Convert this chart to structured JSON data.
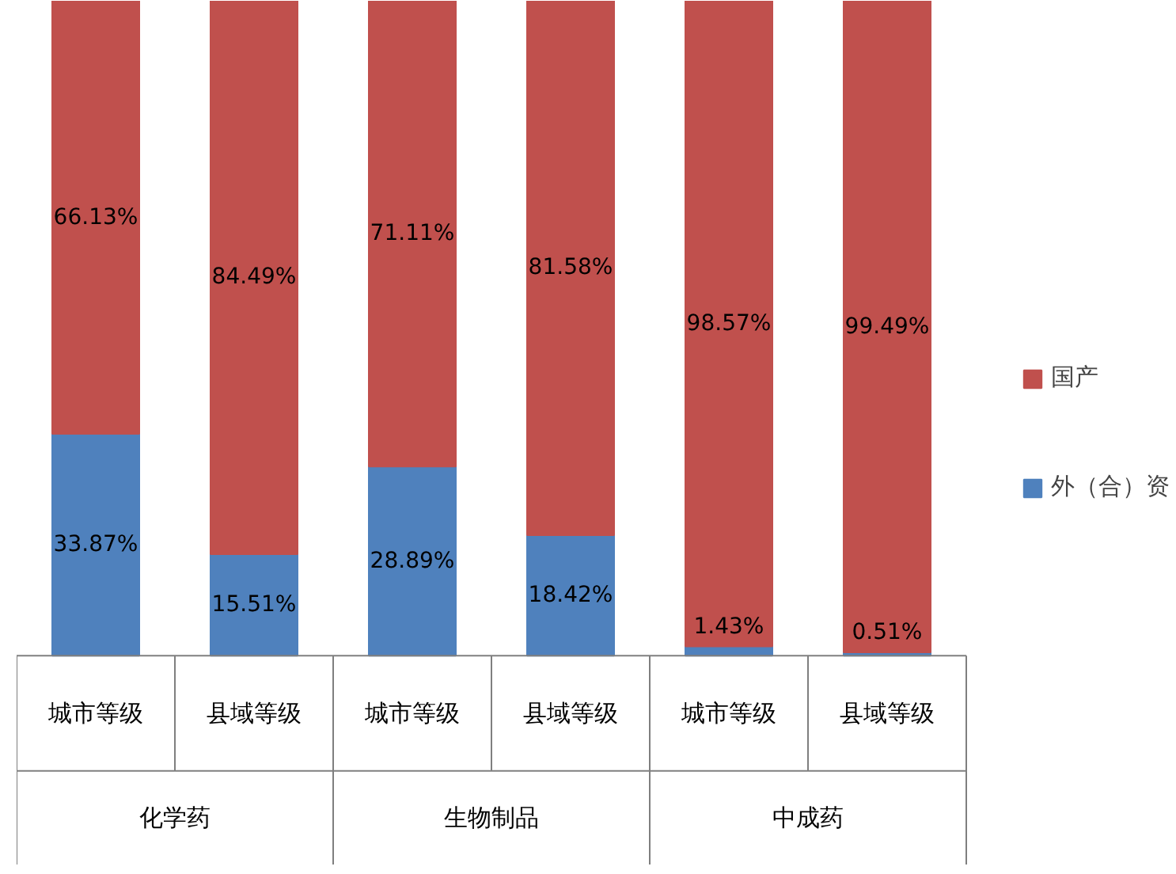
{
  "chart_data": {
    "type": "bar",
    "stacked": true,
    "categories": [
      "城市等级",
      "县域等级",
      "城市等级",
      "县域等级",
      "城市等级",
      "县域等级"
    ],
    "series": [
      {
        "name": "外（合）资",
        "color": "#4f81bd",
        "values": [
          33.87,
          15.51,
          28.89,
          18.42,
          1.43,
          0.51
        ],
        "value_labels": [
          "33.87%",
          "15.51%",
          "28.89%",
          "18.42%",
          "1.43%",
          "0.51%"
        ]
      },
      {
        "name": "国产",
        "color": "#c0504d",
        "values": [
          66.13,
          84.49,
          71.11,
          81.58,
          98.57,
          99.49
        ],
        "value_labels": [
          "66.13%",
          "84.49%",
          "71.11%",
          "81.58%",
          "98.57%",
          "99.49%"
        ]
      }
    ],
    "annotations": [
      "化学药",
      "生物制品",
      "中成药"
    ],
    "legend": "right",
    "grid": false
  }
}
